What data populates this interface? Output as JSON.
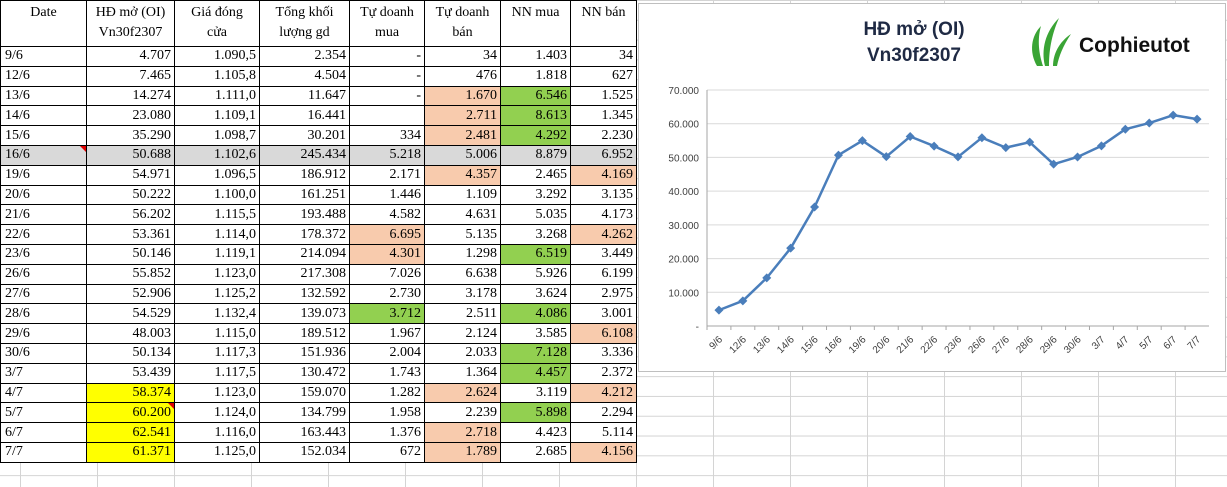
{
  "table": {
    "headers": [
      {
        "line1": "Date",
        "line2": ""
      },
      {
        "line1": "HĐ mở (OI)",
        "line2": "Vn30f2307"
      },
      {
        "line1": "Giá đóng",
        "line2": "cửa"
      },
      {
        "line1": "Tổng khối",
        "line2": "lượng gd"
      },
      {
        "line1": "Tự doanh",
        "line2": "mua"
      },
      {
        "line1": "Tự doanh",
        "line2": "bán"
      },
      {
        "line1": "NN mua",
        "line2": ""
      },
      {
        "line1": "NN bán",
        "line2": ""
      }
    ],
    "rows": [
      {
        "date": "9/6",
        "oi": "4.707",
        "gia": "1.090,5",
        "klgd": "2.354",
        "td_mua": "-",
        "td_ban": "34",
        "nn_mua": "1.403",
        "nn_ban": "34"
      },
      {
        "date": "12/6",
        "oi": "7.465",
        "gia": "1.105,8",
        "klgd": "4.504",
        "td_mua": "-",
        "td_ban": "476",
        "nn_mua": "1.818",
        "nn_ban": "627"
      },
      {
        "date": "13/6",
        "oi": "14.274",
        "gia": "1.111,0",
        "klgd": "11.647",
        "td_mua": "-",
        "td_ban": "1.670",
        "nn_mua": "6.546",
        "nn_ban": "1.525"
      },
      {
        "date": "14/6",
        "oi": "23.080",
        "gia": "1.109,1",
        "klgd": "16.441",
        "td_mua": "",
        "td_ban": "2.711",
        "nn_mua": "8.613",
        "nn_ban": "1.345"
      },
      {
        "date": "15/6",
        "oi": "35.290",
        "gia": "1.098,7",
        "klgd": "30.201",
        "td_mua": "334",
        "td_ban": "2.481",
        "nn_mua": "4.292",
        "nn_ban": "2.230"
      },
      {
        "date": "16/6",
        "oi": "50.688",
        "gia": "1.102,6",
        "klgd": "245.434",
        "td_mua": "5.218",
        "td_ban": "5.006",
        "nn_mua": "8.879",
        "nn_ban": "6.952"
      },
      {
        "date": "19/6",
        "oi": "54.971",
        "gia": "1.096,5",
        "klgd": "186.912",
        "td_mua": "2.171",
        "td_ban": "4.357",
        "nn_mua": "2.465",
        "nn_ban": "4.169"
      },
      {
        "date": "20/6",
        "oi": "50.222",
        "gia": "1.100,0",
        "klgd": "161.251",
        "td_mua": "1.446",
        "td_ban": "1.109",
        "nn_mua": "3.292",
        "nn_ban": "3.135"
      },
      {
        "date": "21/6",
        "oi": "56.202",
        "gia": "1.115,5",
        "klgd": "193.488",
        "td_mua": "4.582",
        "td_ban": "4.631",
        "nn_mua": "5.035",
        "nn_ban": "4.173"
      },
      {
        "date": "22/6",
        "oi": "53.361",
        "gia": "1.114,0",
        "klgd": "178.372",
        "td_mua": "6.695",
        "td_ban": "5.135",
        "nn_mua": "3.268",
        "nn_ban": "4.262"
      },
      {
        "date": "23/6",
        "oi": "50.146",
        "gia": "1.119,1",
        "klgd": "214.094",
        "td_mua": "4.301",
        "td_ban": "1.298",
        "nn_mua": "6.519",
        "nn_ban": "3.449"
      },
      {
        "date": "26/6",
        "oi": "55.852",
        "gia": "1.123,0",
        "klgd": "217.308",
        "td_mua": "7.026",
        "td_ban": "6.638",
        "nn_mua": "5.926",
        "nn_ban": "6.199"
      },
      {
        "date": "27/6",
        "oi": "52.906",
        "gia": "1.125,2",
        "klgd": "132.592",
        "td_mua": "2.730",
        "td_ban": "3.178",
        "nn_mua": "3.624",
        "nn_ban": "2.975"
      },
      {
        "date": "28/6",
        "oi": "54.529",
        "gia": "1.132,4",
        "klgd": "139.073",
        "td_mua": "3.712",
        "td_ban": "2.511",
        "nn_mua": "4.086",
        "nn_ban": "3.001"
      },
      {
        "date": "29/6",
        "oi": "48.003",
        "gia": "1.115,0",
        "klgd": "189.512",
        "td_mua": "1.967",
        "td_ban": "2.124",
        "nn_mua": "3.585",
        "nn_ban": "6.108"
      },
      {
        "date": "30/6",
        "oi": "50.134",
        "gia": "1.117,3",
        "klgd": "151.936",
        "td_mua": "2.004",
        "td_ban": "2.033",
        "nn_mua": "7.128",
        "nn_ban": "3.336"
      },
      {
        "date": "3/7",
        "oi": "53.439",
        "gia": "1.117,5",
        "klgd": "130.472",
        "td_mua": "1.743",
        "td_ban": "1.364",
        "nn_mua": "4.457",
        "nn_ban": "2.372"
      },
      {
        "date": "4/7",
        "oi": "58.374",
        "gia": "1.123,0",
        "klgd": "159.070",
        "td_mua": "1.282",
        "td_ban": "2.624",
        "nn_mua": "3.119",
        "nn_ban": "4.212"
      },
      {
        "date": "5/7",
        "oi": "60.200",
        "gia": "1.124,0",
        "klgd": "134.799",
        "td_mua": "1.958",
        "td_ban": "2.239",
        "nn_mua": "5.898",
        "nn_ban": "2.294"
      },
      {
        "date": "6/7",
        "oi": "62.541",
        "gia": "1.116,0",
        "klgd": "163.443",
        "td_mua": "1.376",
        "td_ban": "2.718",
        "nn_mua": "4.423",
        "nn_ban": "5.114"
      },
      {
        "date": "7/7",
        "oi": "61.371",
        "gia": "1.125,0",
        "klgd": "152.034",
        "td_mua": "672",
        "td_ban": "1.789",
        "nn_mua": "2.685",
        "nn_ban": "4.156"
      }
    ],
    "highlight_row": "16/6",
    "cell_colors": {
      "orange": "#f8cbad",
      "green": "#92d050",
      "yellow": "#ffff00",
      "row_grey": "#d9d9d9"
    },
    "colored_cells": [
      {
        "date": "13/6",
        "col": "td_ban",
        "color": "orange"
      },
      {
        "date": "13/6",
        "col": "nn_mua",
        "color": "green"
      },
      {
        "date": "14/6",
        "col": "td_ban",
        "color": "orange"
      },
      {
        "date": "14/6",
        "col": "nn_mua",
        "color": "green"
      },
      {
        "date": "15/6",
        "col": "td_ban",
        "color": "orange"
      },
      {
        "date": "15/6",
        "col": "nn_mua",
        "color": "green"
      },
      {
        "date": "19/6",
        "col": "td_ban",
        "color": "orange"
      },
      {
        "date": "19/6",
        "col": "nn_ban",
        "color": "orange"
      },
      {
        "date": "22/6",
        "col": "td_mua",
        "color": "orange"
      },
      {
        "date": "22/6",
        "col": "nn_ban",
        "color": "orange"
      },
      {
        "date": "23/6",
        "col": "td_mua",
        "color": "orange"
      },
      {
        "date": "23/6",
        "col": "nn_mua",
        "color": "green"
      },
      {
        "date": "28/6",
        "col": "td_mua",
        "color": "green"
      },
      {
        "date": "28/6",
        "col": "nn_mua",
        "color": "green"
      },
      {
        "date": "29/6",
        "col": "nn_ban",
        "color": "orange"
      },
      {
        "date": "30/6",
        "col": "nn_mua",
        "color": "green"
      },
      {
        "date": "3/7",
        "col": "nn_mua",
        "color": "green"
      },
      {
        "date": "4/7",
        "col": "oi",
        "color": "yellow"
      },
      {
        "date": "4/7",
        "col": "td_ban",
        "color": "orange"
      },
      {
        "date": "4/7",
        "col": "nn_ban",
        "color": "orange"
      },
      {
        "date": "5/7",
        "col": "oi",
        "color": "yellow"
      },
      {
        "date": "5/7",
        "col": "nn_mua",
        "color": "green"
      },
      {
        "date": "6/7",
        "col": "oi",
        "color": "yellow"
      },
      {
        "date": "6/7",
        "col": "td_ban",
        "color": "orange"
      },
      {
        "date": "7/7",
        "col": "oi",
        "color": "yellow"
      },
      {
        "date": "7/7",
        "col": "td_ban",
        "color": "orange"
      },
      {
        "date": "7/7",
        "col": "nn_ban",
        "color": "orange"
      }
    ]
  },
  "chart": {
    "title_line1": "HĐ mở (OI)",
    "title_line2": "Vn30f2307",
    "logo_text": "Cophieutot",
    "logo_color": "#3aa435",
    "line_color": "#4a7ebb"
  },
  "chart_data": {
    "type": "line",
    "title": "HĐ mở (OI) Vn30f2307",
    "categories": [
      "9/6",
      "12/6",
      "13/6",
      "14/6",
      "15/6",
      "16/6",
      "19/6",
      "20/6",
      "21/6",
      "22/6",
      "23/6",
      "26/6",
      "27/6",
      "28/6",
      "29/6",
      "30/6",
      "3/7",
      "4/7",
      "5/7",
      "6/7",
      "7/7"
    ],
    "series": [
      {
        "name": "",
        "values": [
          4707,
          7465,
          14274,
          23080,
          35290,
          50688,
          54971,
          50222,
          56202,
          53361,
          50146,
          55852,
          52906,
          54529,
          48003,
          50134,
          53439,
          58374,
          60200,
          62541,
          61371
        ]
      }
    ],
    "ylim": [
      0,
      70000
    ],
    "yticks": [
      0,
      10000,
      20000,
      30000,
      40000,
      50000,
      60000,
      70000
    ],
    "ytick_labels": [
      "-",
      "10.000",
      "20.000",
      "30.000",
      "40.000",
      "50.000",
      "60.000",
      "70.000"
    ],
    "grid": true,
    "legend": "none",
    "marker": "diamond"
  }
}
